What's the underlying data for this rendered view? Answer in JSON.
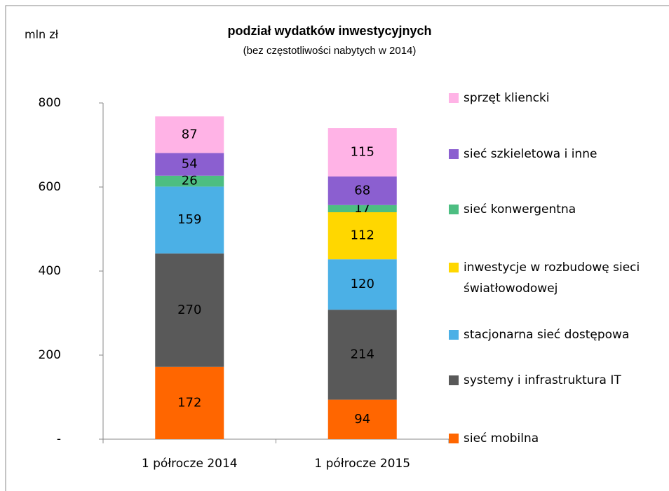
{
  "chart_data": {
    "type": "stacked_bar",
    "title": "podział wydatków inwestycyjnych",
    "subtitle": "(bez częstotliwości  nabytych w  2014)",
    "y_label": "mln zł",
    "categories": [
      "1 półrocze 2014",
      "1 półrocze 2015"
    ],
    "series": [
      {
        "name": "sieć mobilna",
        "color": "#ff6600",
        "values": [
          172,
          94
        ]
      },
      {
        "name": "systemy i infrastruktura IT",
        "color": "#595959",
        "values": [
          270,
          214
        ]
      },
      {
        "name": "stacjonarna sieć dostępowa",
        "color": "#4bb0e6",
        "values": [
          159,
          120
        ]
      },
      {
        "name": "inwestycje w rozbudowę sieci światłowodowej",
        "color": "#ffd700",
        "values": [
          null,
          112
        ]
      },
      {
        "name": "sieć konwergentna",
        "color": "#4dbe82",
        "values": [
          26,
          17
        ]
      },
      {
        "name": "sieć szkieletowa i inne",
        "color": "#8b5fd0",
        "values": [
          54,
          68
        ]
      },
      {
        "name": "sprzęt kliencki",
        "color": "#ffb3e6",
        "values": [
          87,
          115
        ]
      }
    ],
    "ylim": [
      0,
      800
    ],
    "yticks": [
      {
        "value": 0,
        "label": "-"
      },
      200,
      400,
      600,
      800
    ],
    "legend": "right"
  }
}
